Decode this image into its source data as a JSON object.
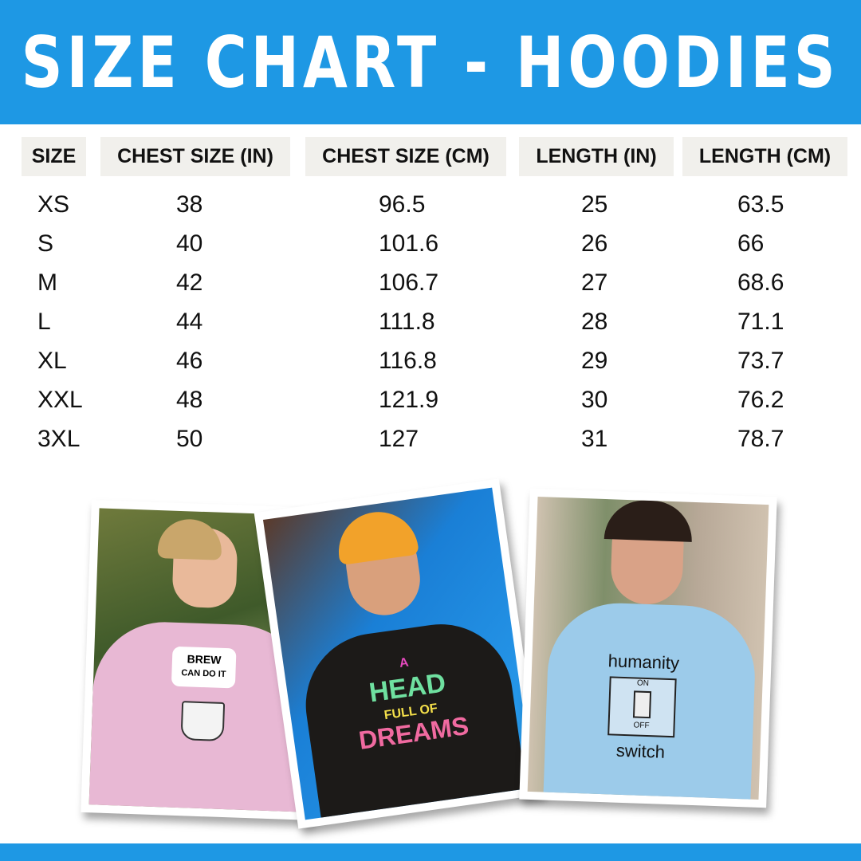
{
  "title": "SIZE CHART - HOODIES",
  "table": {
    "headers": [
      "SIZE",
      "CHEST SIZE (IN)",
      "CHEST SIZE (CM)",
      "LENGTH (IN)",
      "LENGTH (CM)"
    ],
    "rows": [
      [
        "XS",
        "38",
        "96.5",
        "25",
        "63.5"
      ],
      [
        "S",
        "40",
        "101.6",
        "26",
        "66"
      ],
      [
        "M",
        "42",
        "106.7",
        "27",
        "68.6"
      ],
      [
        "L",
        "44",
        "111.8",
        "28",
        "71.1"
      ],
      [
        "XL",
        "46",
        "116.8",
        "29",
        "73.7"
      ],
      [
        "XXL",
        "48",
        "121.9",
        "30",
        "76.2"
      ],
      [
        "3XL",
        "50",
        "127",
        "31",
        "78.7"
      ]
    ]
  },
  "photos": [
    {
      "hoodie_color": "#e8b8d4",
      "print": [
        "BREW",
        "CAN DO IT"
      ]
    },
    {
      "hoodie_color": "#1c1a18",
      "print": [
        "A",
        "HEAD",
        "FULL OF",
        "DREAMS"
      ]
    },
    {
      "hoodie_color": "#9ccbea",
      "print": [
        "humanity",
        "ON",
        "OFF",
        "switch"
      ]
    }
  ],
  "colors": {
    "accent": "#1e98e4",
    "header_cell": "#f1f0ec"
  }
}
